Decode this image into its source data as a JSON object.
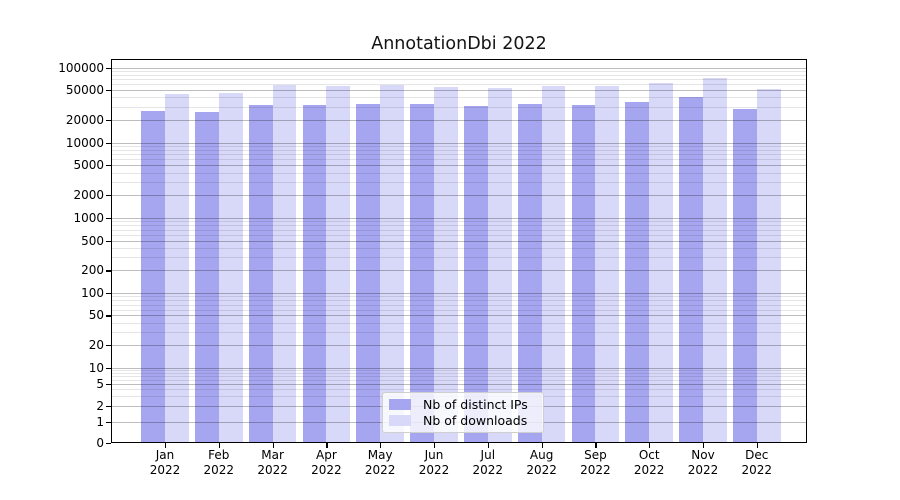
{
  "chart_data": {
    "type": "bar",
    "title": "AnnotationDbi 2022",
    "year": "2022",
    "categories": [
      "Jan",
      "Feb",
      "Mar",
      "Apr",
      "May",
      "Jun",
      "Jul",
      "Aug",
      "Sep",
      "Oct",
      "Nov",
      "Dec"
    ],
    "series": [
      {
        "name": "Nb of distinct IPs",
        "color": "#a6a6f0",
        "values": [
          26000,
          25500,
          31500,
          32000,
          33000,
          32500,
          31000,
          32500,
          31500,
          35000,
          40000,
          28000
        ]
      },
      {
        "name": "Nb of downloads",
        "color": "#d8d8f8",
        "values": [
          44500,
          45500,
          59000,
          56000,
          58000,
          55000,
          53500,
          57000,
          57000,
          63000,
          73500,
          51500
        ]
      }
    ],
    "yscale": "log-with-zero-baseline",
    "ylim": [
      0,
      115000
    ],
    "y_ticks": [
      0,
      1,
      2,
      5,
      10,
      20,
      50,
      100,
      200,
      500,
      1000,
      2000,
      5000,
      10000,
      20000,
      50000,
      100000
    ],
    "grid": "horizontal major and minor",
    "legend_position": "lower center"
  }
}
